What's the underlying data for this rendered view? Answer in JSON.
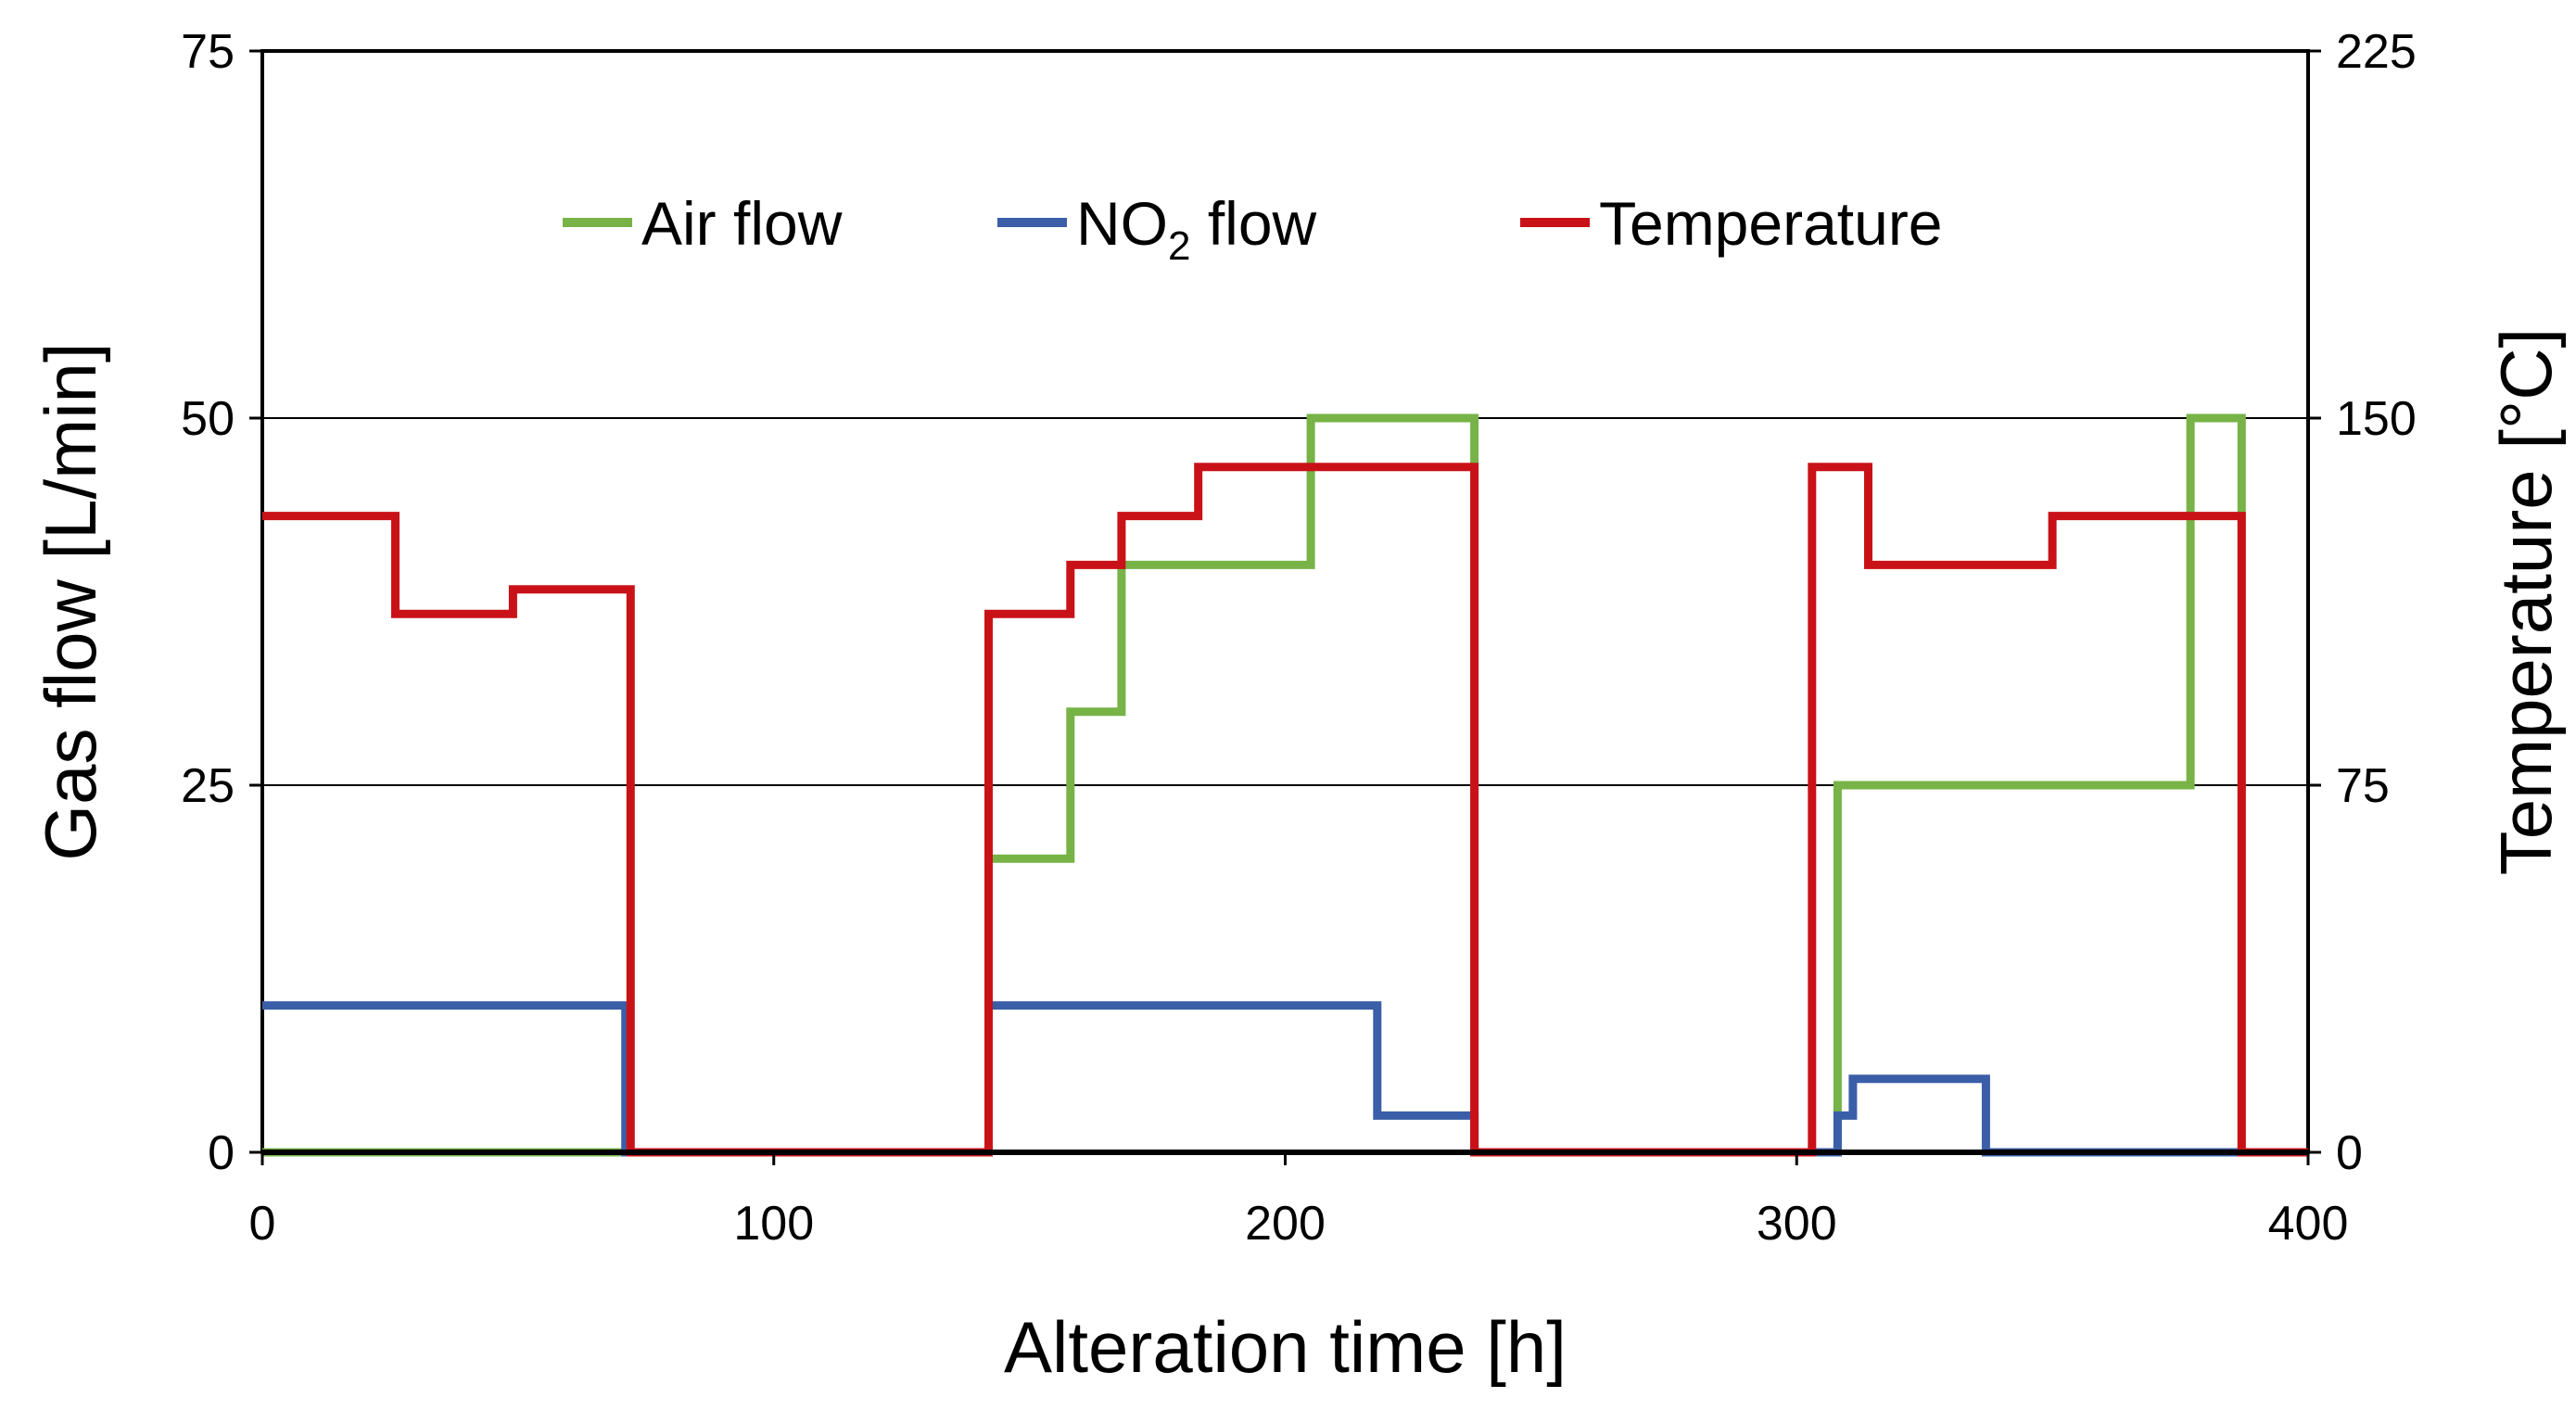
{
  "chart_data": {
    "type": "line",
    "title": "",
    "xlabel": "Alteration time [h]",
    "ylabel_left": "Gas flow [L/min]",
    "ylabel_right": "Temperature [°C]",
    "xlim": [
      0,
      400
    ],
    "ylim_left": [
      0,
      75
    ],
    "ylim_right": [
      0,
      225
    ],
    "x_ticks": [
      "0",
      "100",
      "200",
      "300",
      "400"
    ],
    "y_left_ticks": [
      "0",
      "25",
      "50",
      "75"
    ],
    "y_right_ticks": [
      "0",
      "75",
      "150",
      "225"
    ],
    "grid": "horizontal",
    "legend_position": "top",
    "series": [
      {
        "name": "Air flow",
        "color": "#77b347",
        "axis": "left",
        "x": [
          0,
          142,
          142,
          158,
          158,
          168,
          168,
          205,
          205,
          237,
          237,
          308,
          308,
          377,
          377,
          387,
          387,
          400
        ],
        "y": [
          0,
          0,
          20,
          20,
          30,
          30,
          40,
          40,
          50,
          50,
          0,
          0,
          25,
          25,
          50,
          50,
          0,
          0
        ]
      },
      {
        "name": "NO2 flow",
        "label_main": "NO",
        "label_sub": "2",
        "label_rest": " flow",
        "color": "#3b5ea8",
        "axis": "left",
        "x": [
          0,
          71,
          71,
          142,
          142,
          218,
          218,
          237,
          237,
          308,
          308,
          311,
          311,
          337,
          337,
          400
        ],
        "y": [
          10,
          10,
          0,
          0,
          10,
          10,
          2.5,
          2.5,
          0,
          0,
          2.5,
          2.5,
          5,
          5,
          0,
          0
        ]
      },
      {
        "name": "Temperature",
        "color": "#c91218",
        "axis": "right",
        "x": [
          0,
          26,
          26,
          49,
          49,
          72,
          72,
          142,
          142,
          158,
          158,
          168,
          168,
          183,
          183,
          237,
          237,
          303,
          303,
          314,
          314,
          350,
          350,
          387,
          387,
          400
        ],
        "y": [
          130,
          130,
          110,
          110,
          115,
          115,
          0,
          0,
          110,
          110,
          120,
          120,
          130,
          130,
          140,
          140,
          0,
          0,
          140,
          140,
          120,
          120,
          130,
          130,
          0,
          0
        ]
      }
    ]
  }
}
